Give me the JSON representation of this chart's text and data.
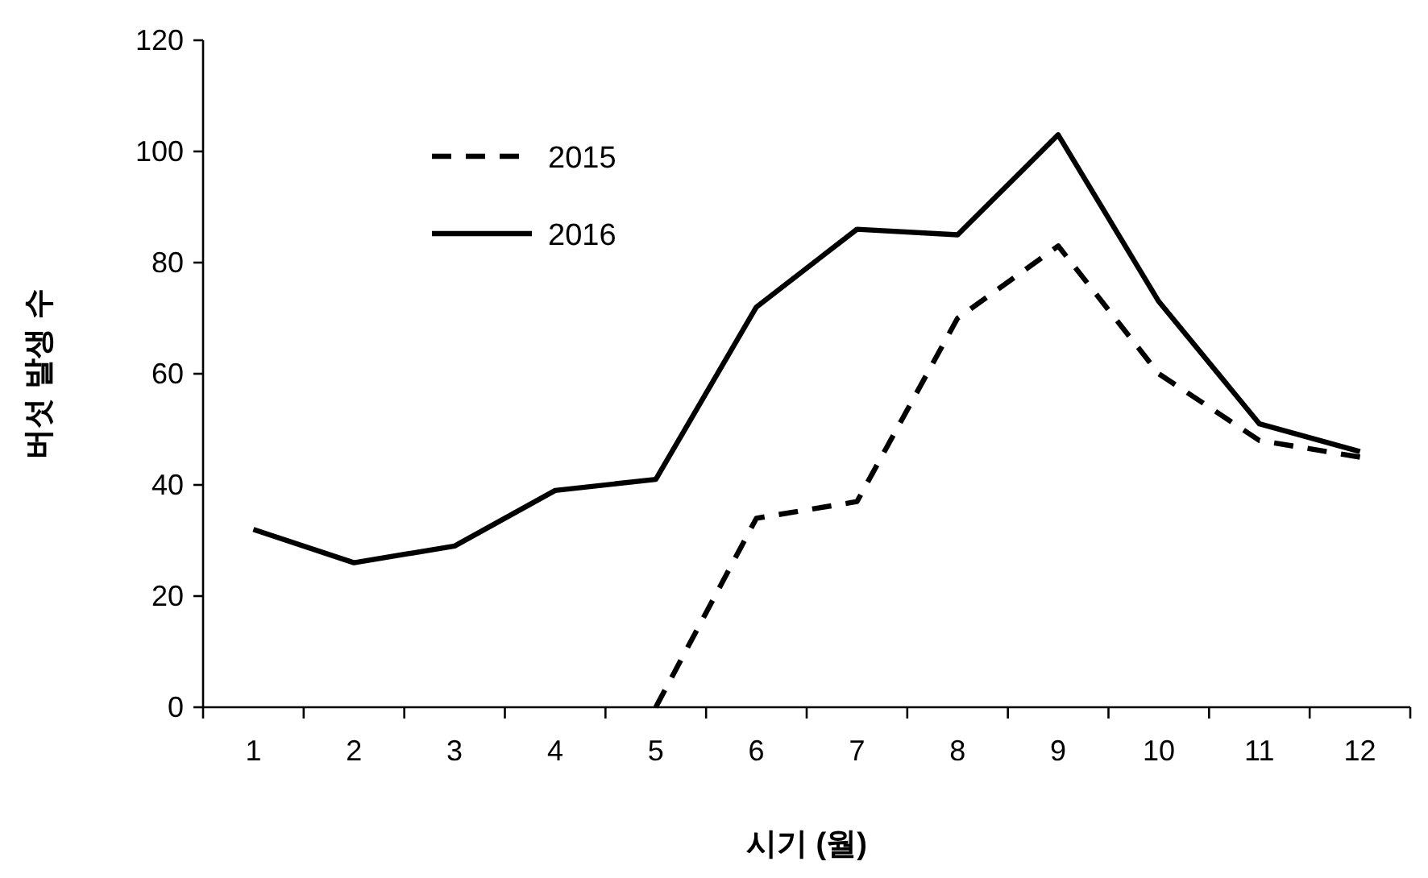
{
  "chart_data": {
    "type": "line",
    "xlabel": "시기 (월)",
    "ylabel": "버섯 발생 수",
    "categories": [
      "1",
      "2",
      "3",
      "4",
      "5",
      "6",
      "7",
      "8",
      "9",
      "10",
      "11",
      "12"
    ],
    "series": [
      {
        "name": "2015",
        "color": "#000000",
        "line_style": "dashed",
        "values": [
          null,
          null,
          null,
          null,
          0,
          34,
          37,
          70,
          83,
          60,
          48,
          45
        ]
      },
      {
        "name": "2016",
        "color": "#000000",
        "line_style": "solid",
        "values": [
          32,
          26,
          29,
          39,
          41,
          72,
          86,
          85,
          103,
          73,
          51,
          46
        ]
      }
    ],
    "ylim": [
      0,
      120
    ],
    "yticks": [
      0,
      20,
      40,
      60,
      80,
      100,
      120
    ],
    "grid": false,
    "legend": "top left",
    "marker": "none"
  }
}
